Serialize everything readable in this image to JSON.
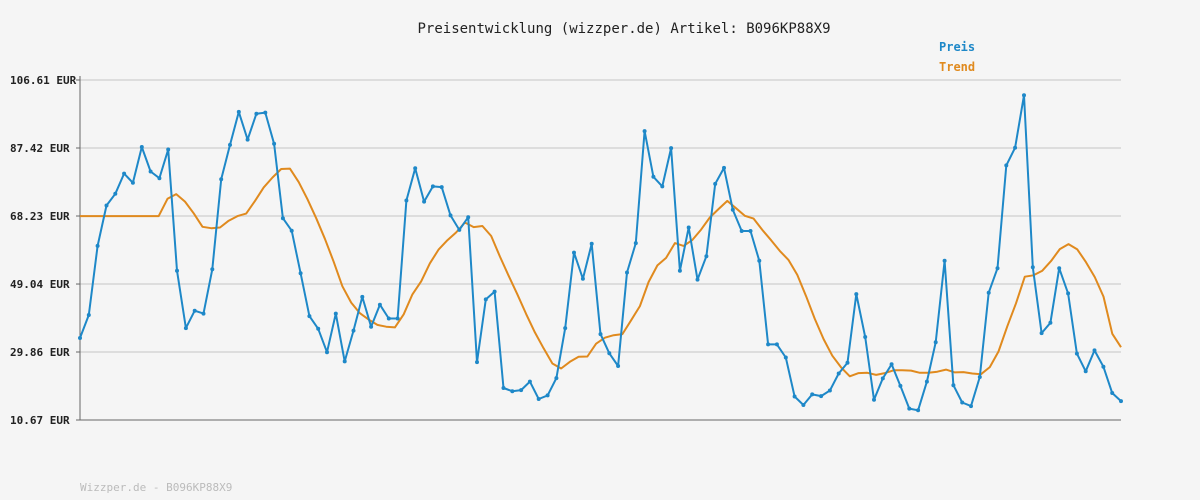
{
  "chart_data": {
    "type": "line",
    "title": "Preisentwicklung (wizzper.de) Artikel: B096KP88X9",
    "footer": "Wizzper.de - B096KP88X9",
    "ylim": [
      10.67,
      106.61
    ],
    "yticks": [
      "106.61 EUR",
      "87.42 EUR",
      "68.23 EUR",
      "49.04 EUR",
      "29.86 EUR",
      "10.67 EUR"
    ],
    "ytick_values": [
      106.61,
      87.42,
      68.23,
      49.04,
      29.86,
      10.67
    ],
    "grid": true,
    "legend_position": "top-right",
    "colors": {
      "preis": "#1e88c8",
      "trend": "#e08a1e",
      "grid": "#dddddd",
      "axis": "#666666"
    },
    "series": [
      {
        "name": "Preis",
        "values": [
          33.8,
          40.3,
          59.8,
          71.2,
          74.5,
          80.2,
          77.6,
          87.7,
          80.8,
          78.9,
          87.0,
          52.8,
          36.6,
          41.5,
          40.7,
          53.2,
          78.6,
          88.3,
          97.6,
          89.8,
          97.1,
          97.4,
          88.6,
          67.6,
          64.1,
          52.1,
          40.0,
          36.4,
          29.8,
          40.7,
          27.2,
          35.9,
          45.4,
          37.0,
          43.2,
          39.3,
          39.3,
          72.6,
          81.7,
          72.3,
          76.6,
          76.4,
          68.4,
          64.3,
          67.9,
          27.0,
          44.7,
          46.9,
          19.7,
          18.8,
          19.1,
          21.5,
          16.6,
          17.6,
          22.5,
          36.6,
          57.9,
          50.5,
          60.4,
          34.9,
          29.5,
          25.9,
          52.3,
          60.6,
          92.2,
          79.3,
          76.6,
          87.4,
          52.8,
          65.0,
          50.3,
          56.9,
          77.3,
          81.8,
          70.0,
          64.0,
          64.0,
          55.6,
          32.0,
          32.0,
          28.3,
          17.3,
          14.9,
          17.9,
          17.4,
          19.0,
          23.8,
          26.8,
          46.2,
          34.1,
          16.4,
          22.4,
          26.4,
          20.3,
          13.9,
          13.4,
          21.5,
          32.6,
          55.6,
          20.5,
          15.6,
          14.6,
          22.8,
          46.6,
          53.5,
          82.5,
          87.5,
          102.3,
          53.8,
          35.2,
          38.1,
          53.5,
          46.4,
          29.4,
          24.4,
          30.3,
          25.7,
          18.3,
          16.0
        ]
      },
      {
        "name": "Trend",
        "values": [
          68.2,
          68.2,
          68.2,
          68.2,
          68.2,
          68.2,
          68.2,
          68.2,
          68.2,
          68.2,
          73.1,
          74.4,
          72.3,
          69.0,
          65.2,
          64.8,
          65.0,
          66.9,
          68.2,
          68.9,
          72.5,
          76.3,
          79.1,
          81.5,
          81.6,
          77.8,
          73.0,
          67.6,
          61.8,
          55.3,
          48.4,
          43.8,
          40.8,
          39.0,
          37.5,
          37.0,
          36.8,
          40.5,
          46.1,
          49.8,
          54.9,
          58.8,
          61.4,
          63.6,
          66.4,
          65.1,
          65.4,
          62.6,
          56.8,
          51.4,
          46.1,
          40.6,
          35.4,
          30.9,
          26.6,
          25.2,
          27.1,
          28.5,
          28.6,
          32.2,
          33.9,
          34.6,
          34.9,
          38.8,
          42.8,
          49.6,
          54.3,
          56.4,
          60.6,
          59.8,
          61.5,
          64.4,
          67.8,
          70.2,
          72.5,
          70.4,
          68.3,
          67.5,
          64.3,
          61.4,
          58.4,
          55.8,
          51.6,
          45.6,
          39.2,
          33.5,
          28.8,
          25.5,
          23.0,
          23.9,
          24.0,
          23.4,
          23.9,
          24.7,
          24.7,
          24.6,
          24.0,
          24.0,
          24.3,
          24.9,
          24.1,
          24.2,
          23.8,
          23.6,
          25.6,
          30.0,
          37.1,
          43.6,
          51.1,
          51.5,
          52.8,
          55.5,
          58.9,
          60.3,
          58.8,
          55.2,
          51.0,
          45.5,
          35.0,
          31.2
        ]
      }
    ]
  }
}
